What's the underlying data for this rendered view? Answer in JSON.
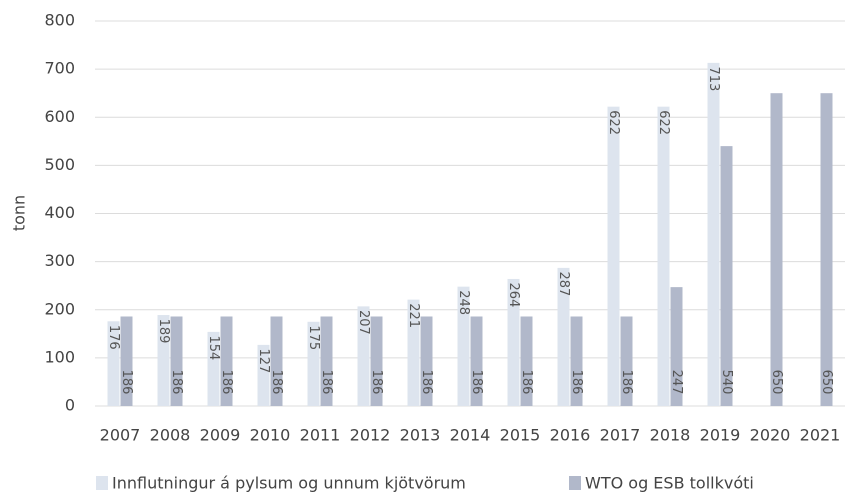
{
  "chart_data": {
    "type": "bar",
    "y_label": "tonn",
    "categories": [
      "2007",
      "2008",
      "2009",
      "2010",
      "2011",
      "2012",
      "2013",
      "2014",
      "2015",
      "2016",
      "2017",
      "2018",
      "2019",
      "2020",
      "2021"
    ],
    "series": [
      {
        "name": "Innflutningur á pylsum og unnum kjötvörum",
        "color": "#dde4ee",
        "values": [
          176,
          189,
          154,
          127,
          175,
          207,
          221,
          248,
          264,
          287,
          622,
          622,
          713,
          null,
          null
        ]
      },
      {
        "name": "WTO og ESB tollkvóti",
        "color": "#b1b8ca",
        "values": [
          186,
          186,
          186,
          186,
          186,
          186,
          186,
          186,
          186,
          186,
          186,
          247,
          540,
          650,
          650
        ]
      }
    ],
    "ylim": [
      0,
      800
    ],
    "yticks": [
      0,
      100,
      200,
      300,
      400,
      500,
      600,
      700,
      800
    ],
    "grid": true
  }
}
